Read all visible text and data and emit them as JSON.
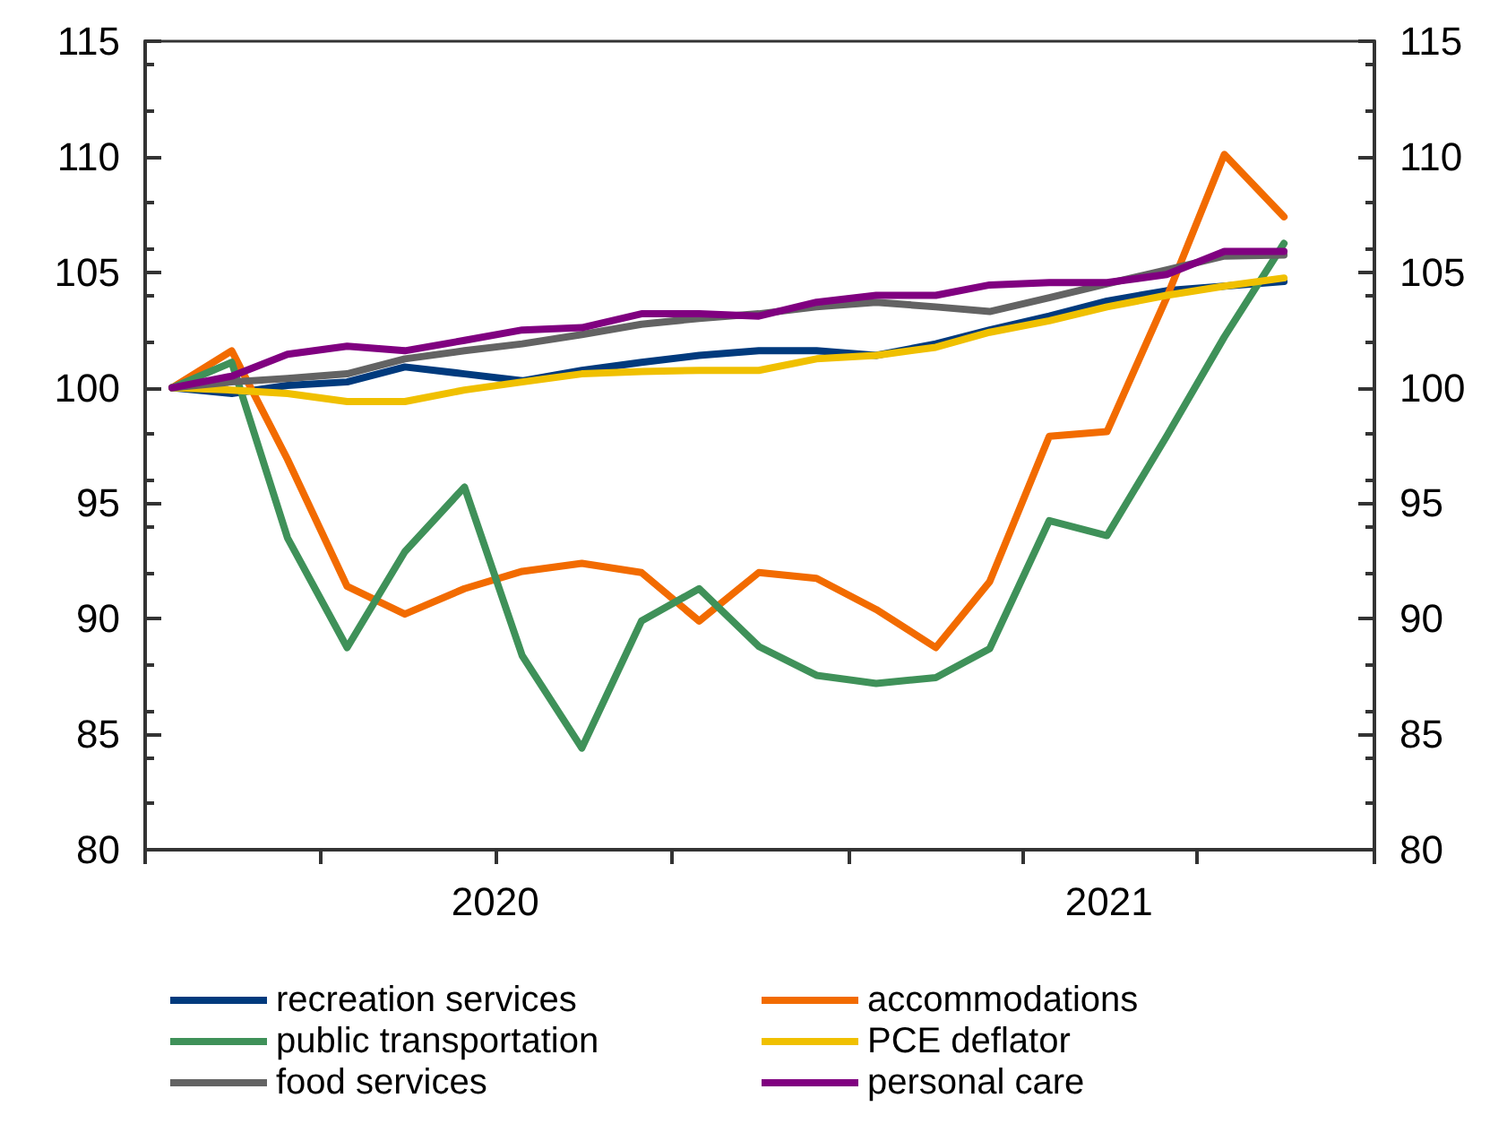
{
  "chart_data": {
    "type": "line",
    "x": [
      "2020-01-15",
      "2020-02-15",
      "2020-03-15",
      "2020-04-15",
      "2020-05-15",
      "2020-06-15",
      "2020-07-15",
      "2020-08-15",
      "2020-09-15",
      "2020-10-15",
      "2020-11-15",
      "2020-12-15",
      "2021-01-15",
      "2021-02-15",
      "2021-03-15",
      "2021-04-15",
      "2021-05-15",
      "2021-06-15",
      "2021-07-15",
      "2021-08-15"
    ],
    "series": [
      {
        "name": "recreation services",
        "color": "#003a7d",
        "values": [
          100,
          99.75,
          100.1,
          100.25,
          100.9,
          100.6,
          100.3,
          100.75,
          101.1,
          101.4,
          101.6,
          101.6,
          101.4,
          101.9,
          102.5,
          103.1,
          103.75,
          104.2,
          104.4,
          104.6
        ]
      },
      {
        "name": "accommodations",
        "color": "#f26b00",
        "values": [
          100,
          101.6,
          96.9,
          91.4,
          90.2,
          91.3,
          92.05,
          92.4,
          92.0,
          89.9,
          92.0,
          91.75,
          90.4,
          88.75,
          91.6,
          97.9,
          98.1,
          103.9,
          110.1,
          107.4
        ]
      },
      {
        "name": "public transportation",
        "color": "#3f9159",
        "values": [
          100,
          101.1,
          93.5,
          88.75,
          92.9,
          95.7,
          88.4,
          84.4,
          89.9,
          91.3,
          88.8,
          87.55,
          87.2,
          87.45,
          88.7,
          94.25,
          93.6,
          97.9,
          102.2,
          106.25
        ]
      },
      {
        "name": "PCE deflator",
        "color": "#f0c000",
        "values": [
          100,
          99.9,
          99.75,
          99.4,
          99.4,
          99.9,
          100.25,
          100.6,
          100.7,
          100.75,
          100.75,
          101.25,
          101.4,
          101.75,
          102.4,
          102.9,
          103.5,
          104,
          104.4,
          104.75
        ]
      },
      {
        "name": "food services",
        "color": "#636363",
        "values": [
          100,
          100.25,
          100.4,
          100.6,
          101.25,
          101.6,
          101.9,
          102.3,
          102.75,
          103,
          103.2,
          103.5,
          103.7,
          103.5,
          103.3,
          103.9,
          104.5,
          105.1,
          105.7,
          105.75
        ]
      },
      {
        "name": "personal care",
        "color": "#800080",
        "values": [
          100,
          100.5,
          101.45,
          101.8,
          101.6,
          102.05,
          102.5,
          102.6,
          103.2,
          103.2,
          103.1,
          103.7,
          104,
          104,
          104.45,
          104.55,
          104.55,
          104.9,
          105.9,
          105.9
        ]
      }
    ],
    "xlim": [
      "2020-01-01",
      "2021-10-01"
    ],
    "xticks": [
      {
        "value": "2020-01-01",
        "label": null
      },
      {
        "value": "2020-04-01",
        "label": null
      },
      {
        "value": "2020-07-01",
        "label": null
      },
      {
        "value": "2020-10-01",
        "label": null
      },
      {
        "value": "2021-01-01",
        "label": null
      },
      {
        "value": "2021-04-01",
        "label": null
      },
      {
        "value": "2021-07-01",
        "label": null
      },
      {
        "value": "2021-10-01",
        "label": null
      },
      {
        "value": "2020-07-01",
        "label": "2020"
      },
      {
        "value": "2021-05-16",
        "label": "2021"
      }
    ],
    "ylim": [
      80,
      115
    ],
    "yticks": [
      80,
      85,
      90,
      95,
      100,
      105,
      110,
      115
    ],
    "y2lim": [
      80,
      115
    ],
    "y2ticks": [
      80,
      85,
      90,
      95,
      100,
      105,
      110,
      115
    ],
    "grid": false,
    "legend": "bottom",
    "marker": "none",
    "line_style": "solid"
  }
}
